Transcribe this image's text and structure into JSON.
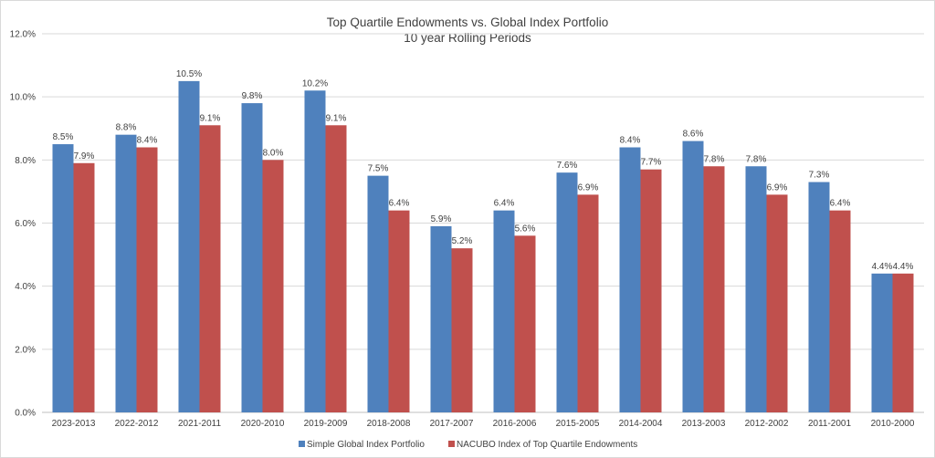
{
  "chart_data": {
    "type": "bar",
    "title": "Top Quartile Endowments vs. Global Index Portfolio",
    "subtitle": "10 year Rolling Periods",
    "xlabel": "",
    "ylabel": "",
    "ylim": [
      0,
      12
    ],
    "yticks": [
      "0.0%",
      "2.0%",
      "4.0%",
      "6.0%",
      "8.0%",
      "10.0%",
      "12.0%"
    ],
    "grid": true,
    "legend_position": "bottom",
    "categories": [
      "2023-2013",
      "2022-2012",
      "2021-2011",
      "2020-2010",
      "2019-2009",
      "2018-2008",
      "2017-2007",
      "2016-2006",
      "2015-2005",
      "2014-2004",
      "2013-2003",
      "2012-2002",
      "2011-2001",
      "2010-2000"
    ],
    "series": [
      {
        "name": "Simple Global Index Portfolio",
        "color": "#4f81bd",
        "values": [
          8.5,
          8.8,
          10.5,
          9.8,
          10.2,
          7.5,
          5.9,
          6.4,
          7.6,
          8.4,
          8.6,
          7.8,
          7.3,
          4.4
        ],
        "labels": [
          "8.5%",
          "8.8%",
          "10.5%",
          "9.8%",
          "10.2%",
          "7.5%",
          "5.9%",
          "6.4%",
          "7.6%",
          "8.4%",
          "8.6%",
          "7.8%",
          "7.3%",
          "4.4%"
        ]
      },
      {
        "name": "NACUBO Index of Top Quartile Endowments",
        "color": "#c0504d",
        "values": [
          7.9,
          8.4,
          9.1,
          8.0,
          9.1,
          6.4,
          5.2,
          5.6,
          6.9,
          7.7,
          7.8,
          6.9,
          6.4,
          4.4
        ],
        "labels": [
          "7.9%",
          "8.4%",
          "9.1%",
          "8.0%",
          "9.1%",
          "6.4%",
          "5.2%",
          "5.6%",
          "6.9%",
          "7.7%",
          "7.8%",
          "6.9%",
          "6.4%",
          "4.4%"
        ]
      }
    ]
  }
}
